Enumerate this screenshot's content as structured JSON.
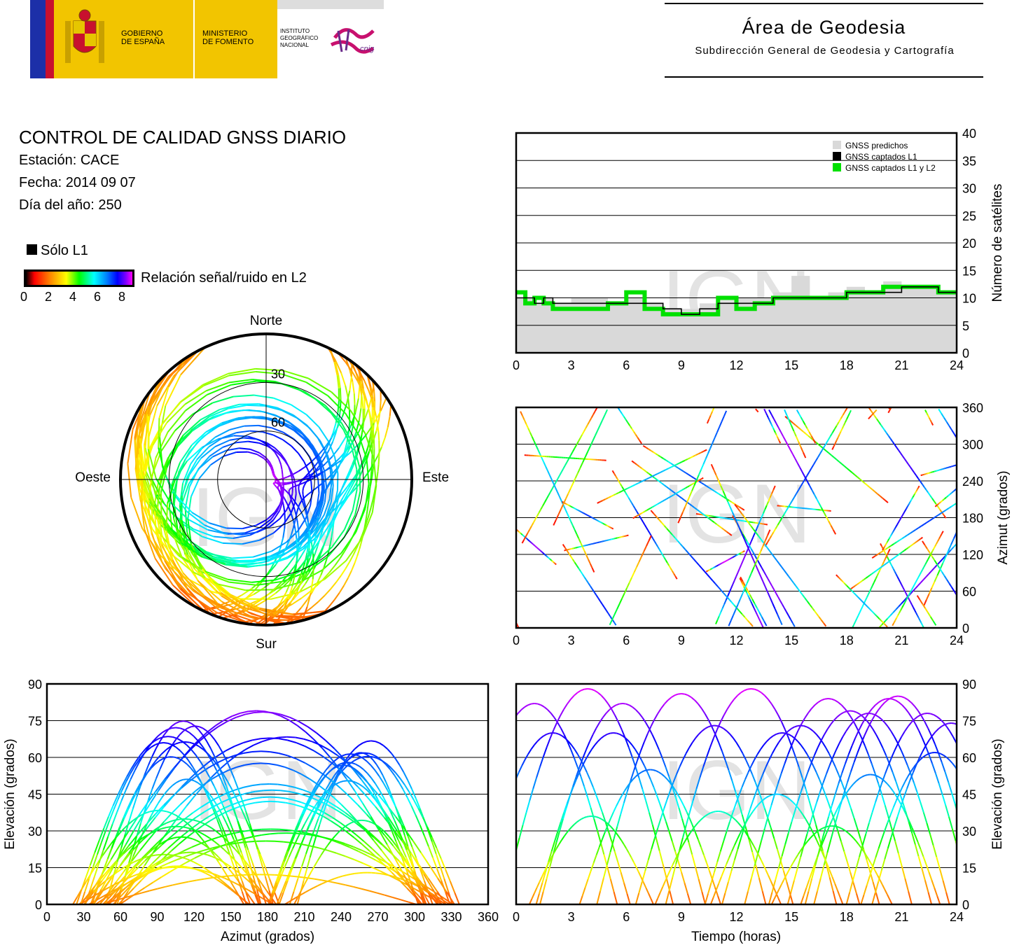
{
  "header": {
    "gov_line1": "GOBIERNO",
    "gov_line2": "DE ESPAÑA",
    "min_line1": "MINISTERIO",
    "min_line2": "DE FOMENTO",
    "ign_line1": "INSTITUTO",
    "ign_line2": "GEOGRÁFICO",
    "ign_line3": "NACIONAL",
    "cnig": "cnig",
    "area_title": "Área de Geodesia",
    "area_subtitle": "Subdirección General de Geodesia y Cartografía"
  },
  "report": {
    "title": "CONTROL DE CALIDAD GNSS DIARIO",
    "station": "Estación: CACE",
    "date": "Fecha: 2014 09 07",
    "doy": "Día del año: 250",
    "legend_l1": "Sólo L1",
    "legend_snr": "Relación señal/ruido en L2",
    "colorbar_ticks": [
      "0",
      "2",
      "4",
      "6",
      "8"
    ]
  },
  "colors": {
    "gnss_predicted": "#d9d9d9",
    "gnss_l1": "#000000",
    "gnss_l1_l2": "#00e000",
    "colormap": [
      "#000000",
      "#ff0000",
      "#ff8000",
      "#ffff00",
      "#00ff00",
      "#00ffff",
      "#0080ff",
      "#0000ff",
      "#8000ff",
      "#ff00ff"
    ]
  },
  "chart_data": [
    {
      "id": "satellite-count",
      "type": "area",
      "ylabel": "Número de satélites",
      "xlim": [
        0,
        24
      ],
      "ylim": [
        0,
        40
      ],
      "xticks": [
        "0",
        "3",
        "6",
        "9",
        "12",
        "15",
        "18",
        "21",
        "24"
      ],
      "yticks": [
        "0",
        "5",
        "10",
        "15",
        "20",
        "25",
        "30",
        "35",
        "40"
      ],
      "legend": [
        "GNSS predichos",
        "GNSS captados L1",
        "GNSS captados L1 y L2"
      ],
      "legend_position": "top-right",
      "series": [
        {
          "name": "GNSS predichos",
          "x": [
            0,
            0.5,
            1,
            1.5,
            2,
            3,
            4,
            5,
            6,
            7,
            8,
            9,
            10,
            11,
            12,
            13,
            14,
            15,
            16,
            17,
            18,
            19,
            20,
            21,
            22,
            23,
            24
          ],
          "values": [
            10,
            10,
            9,
            10,
            9,
            10,
            10,
            9,
            10,
            9,
            8,
            8,
            9,
            9,
            10,
            10,
            11,
            14,
            10,
            11,
            12,
            11,
            13,
            12,
            12,
            11,
            12
          ]
        },
        {
          "name": "GNSS captados L1",
          "x": [
            0,
            0.5,
            1,
            1.5,
            2,
            3,
            4,
            5,
            6,
            7,
            8,
            9,
            10,
            11,
            12,
            13,
            14,
            15,
            16,
            17,
            18,
            19,
            20,
            21,
            22,
            23,
            24
          ],
          "values": [
            10,
            10,
            9,
            10,
            9,
            9,
            9,
            9,
            9,
            9,
            8,
            7,
            8,
            9,
            9,
            9,
            10,
            10,
            10,
            10,
            11,
            11,
            11,
            12,
            12,
            11,
            12
          ]
        },
        {
          "name": "GNSS captados L1 y L2",
          "x": [
            0,
            0.5,
            1,
            1.5,
            2,
            3,
            4,
            5,
            6,
            7,
            8,
            9,
            10,
            11,
            12,
            13,
            14,
            15,
            16,
            17,
            18,
            19,
            20,
            21,
            22,
            23,
            24
          ],
          "values": [
            11,
            9,
            10,
            9,
            8,
            8,
            8,
            9,
            11,
            8,
            7,
            7,
            7,
            10,
            8,
            9,
            10,
            10,
            10,
            10,
            11,
            11,
            12,
            12,
            12,
            11,
            11
          ]
        }
      ]
    },
    {
      "id": "azimuth-time",
      "type": "scatter",
      "ylabel": "Azimut (grados)",
      "xlim": [
        0,
        24
      ],
      "ylim": [
        0,
        360
      ],
      "xticks": [
        "0",
        "3",
        "6",
        "9",
        "12",
        "15",
        "18",
        "21",
        "24"
      ],
      "yticks": [
        "0",
        "60",
        "120",
        "180",
        "240",
        "300",
        "360"
      ]
    },
    {
      "id": "skyplot",
      "type": "scatter",
      "projection": "polar",
      "labels": {
        "north": "Norte",
        "south": "Sur",
        "east": "Este",
        "west": "Oeste"
      },
      "ring_labels": [
        "30",
        "60"
      ],
      "rings_elevation": [
        0,
        30,
        60
      ]
    },
    {
      "id": "elevation-azimuth",
      "type": "scatter",
      "xlabel": "Azimut (grados)",
      "ylabel": "Elevación (grados)",
      "xlim": [
        0,
        360
      ],
      "ylim": [
        0,
        90
      ],
      "xticks": [
        "0",
        "30",
        "60",
        "90",
        "120",
        "150",
        "180",
        "210",
        "240",
        "270",
        "300",
        "330",
        "360"
      ],
      "yticks": [
        "0",
        "15",
        "30",
        "45",
        "60",
        "75",
        "90"
      ]
    },
    {
      "id": "elevation-time",
      "type": "line",
      "xlabel": "Tiempo (horas)",
      "ylabel": "Elevación (grados)",
      "xlim": [
        0,
        24
      ],
      "ylim": [
        0,
        90
      ],
      "xticks": [
        "0",
        "3",
        "6",
        "9",
        "12",
        "15",
        "18",
        "21",
        "24"
      ],
      "yticks": [
        "0",
        "15",
        "30",
        "45",
        "60",
        "75",
        "90"
      ],
      "series": [
        {
          "peak_time": 1.0,
          "peak_elev": 82
        },
        {
          "peak_time": 2.0,
          "peak_elev": 70
        },
        {
          "peak_time": 3.9,
          "peak_elev": 88
        },
        {
          "peak_time": 5.8,
          "peak_elev": 82
        },
        {
          "peak_time": 5.3,
          "peak_elev": 70
        },
        {
          "peak_time": 9.0,
          "peak_elev": 86
        },
        {
          "peak_time": 10.8,
          "peak_elev": 73
        },
        {
          "peak_time": 12.8,
          "peak_elev": 88
        },
        {
          "peak_time": 14.5,
          "peak_elev": 70
        },
        {
          "peak_time": 15.5,
          "peak_elev": 73
        },
        {
          "peak_time": 17.0,
          "peak_elev": 84
        },
        {
          "peak_time": 18.2,
          "peak_elev": 79
        },
        {
          "peak_time": 19.2,
          "peak_elev": 78
        },
        {
          "peak_time": 20.3,
          "peak_elev": 84
        },
        {
          "peak_time": 20.8,
          "peak_elev": 85
        },
        {
          "peak_time": 22.4,
          "peak_elev": 78
        },
        {
          "peak_time": 23.7,
          "peak_elev": 74
        },
        {
          "peak_time": 7.3,
          "peak_elev": 55
        },
        {
          "peak_time": 11.0,
          "peak_elev": 38
        },
        {
          "peak_time": 19.3,
          "peak_elev": 53
        },
        {
          "peak_time": 22.8,
          "peak_elev": 62
        },
        {
          "peak_time": 4.1,
          "peak_elev": 36
        },
        {
          "peak_time": 17.2,
          "peak_elev": 32
        },
        {
          "peak_time": 14.2,
          "peak_elev": 45
        }
      ]
    }
  ]
}
